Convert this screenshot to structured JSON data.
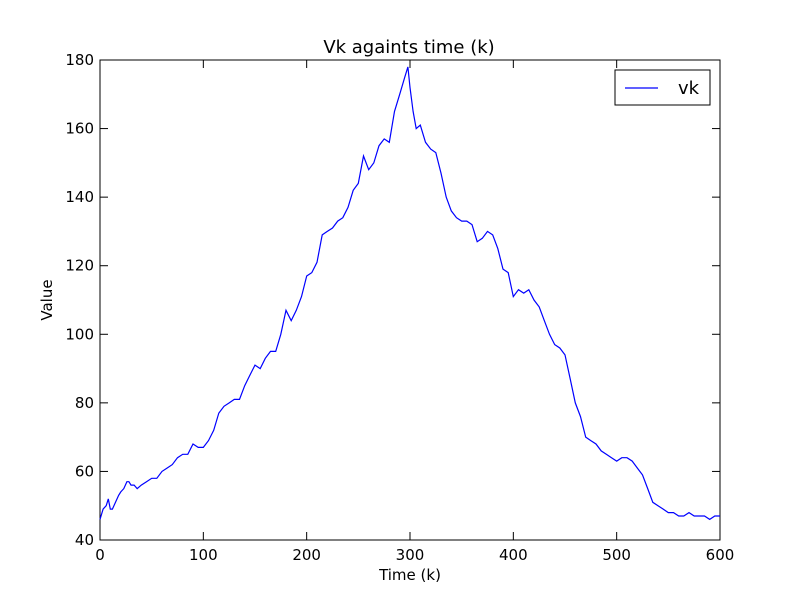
{
  "chart_data": {
    "type": "line",
    "title": "Vk againts time (k)",
    "xlabel": "Time (k)",
    "ylabel": "Value",
    "xlim": [
      0,
      600
    ],
    "ylim": [
      40,
      180
    ],
    "xticks": [
      0,
      100,
      200,
      300,
      400,
      500,
      600
    ],
    "yticks": [
      40,
      60,
      80,
      100,
      120,
      140,
      160,
      180
    ],
    "xtick_labels": [
      "0",
      "100",
      "200",
      "300",
      "400",
      "500",
      "600"
    ],
    "ytick_labels": [
      "40",
      "60",
      "80",
      "100",
      "120",
      "140",
      "160",
      "180"
    ],
    "grid": false,
    "legend": "top-right",
    "series": [
      {
        "name": "vk",
        "color": "#0000ff",
        "x": [
          0,
          3,
          6,
          8,
          10,
          12,
          15,
          18,
          20,
          23,
          26,
          28,
          30,
          33,
          36,
          40,
          45,
          50,
          55,
          60,
          65,
          70,
          75,
          80,
          85,
          90,
          95,
          100,
          105,
          110,
          115,
          120,
          125,
          130,
          135,
          140,
          145,
          150,
          155,
          160,
          165,
          170,
          175,
          180,
          185,
          190,
          195,
          200,
          205,
          210,
          215,
          220,
          225,
          230,
          235,
          240,
          245,
          250,
          255,
          260,
          265,
          270,
          275,
          280,
          285,
          290,
          295,
          298,
          300,
          303,
          306,
          310,
          315,
          320,
          325,
          330,
          335,
          340,
          345,
          350,
          355,
          360,
          365,
          370,
          375,
          380,
          385,
          390,
          395,
          400,
          405,
          410,
          415,
          420,
          425,
          430,
          435,
          440,
          445,
          450,
          455,
          460,
          465,
          470,
          475,
          480,
          485,
          490,
          495,
          500,
          505,
          510,
          515,
          520,
          525,
          530,
          535,
          540,
          545,
          550,
          555,
          560,
          565,
          570,
          575,
          580,
          585,
          590,
          595,
          600
        ],
        "values": [
          46,
          49,
          50,
          52,
          49,
          49,
          51,
          53,
          54,
          55,
          57,
          57,
          56,
          56,
          55,
          56,
          57,
          58,
          58,
          60,
          61,
          62,
          64,
          65,
          65,
          68,
          67,
          67,
          69,
          72,
          77,
          79,
          80,
          81,
          81,
          85,
          88,
          91,
          90,
          93,
          95,
          95,
          100,
          107,
          104,
          107,
          111,
          117,
          118,
          121,
          129,
          130,
          131,
          133,
          134,
          137,
          142,
          144,
          152,
          148,
          150,
          155,
          157,
          156,
          165,
          170,
          175,
          178,
          172,
          165,
          160,
          161,
          156,
          154,
          153,
          147,
          140,
          136,
          134,
          133,
          133,
          132,
          127,
          128,
          130,
          129,
          125,
          119,
          118,
          111,
          113,
          112,
          113,
          110,
          108,
          104,
          100,
          97,
          96,
          94,
          87,
          80,
          76,
          70,
          69,
          68,
          66,
          65,
          64,
          63,
          64,
          64,
          63,
          61,
          59,
          55,
          51,
          50,
          49,
          48,
          48,
          47,
          47,
          48,
          47,
          47,
          47,
          46,
          47,
          47
        ]
      }
    ]
  }
}
